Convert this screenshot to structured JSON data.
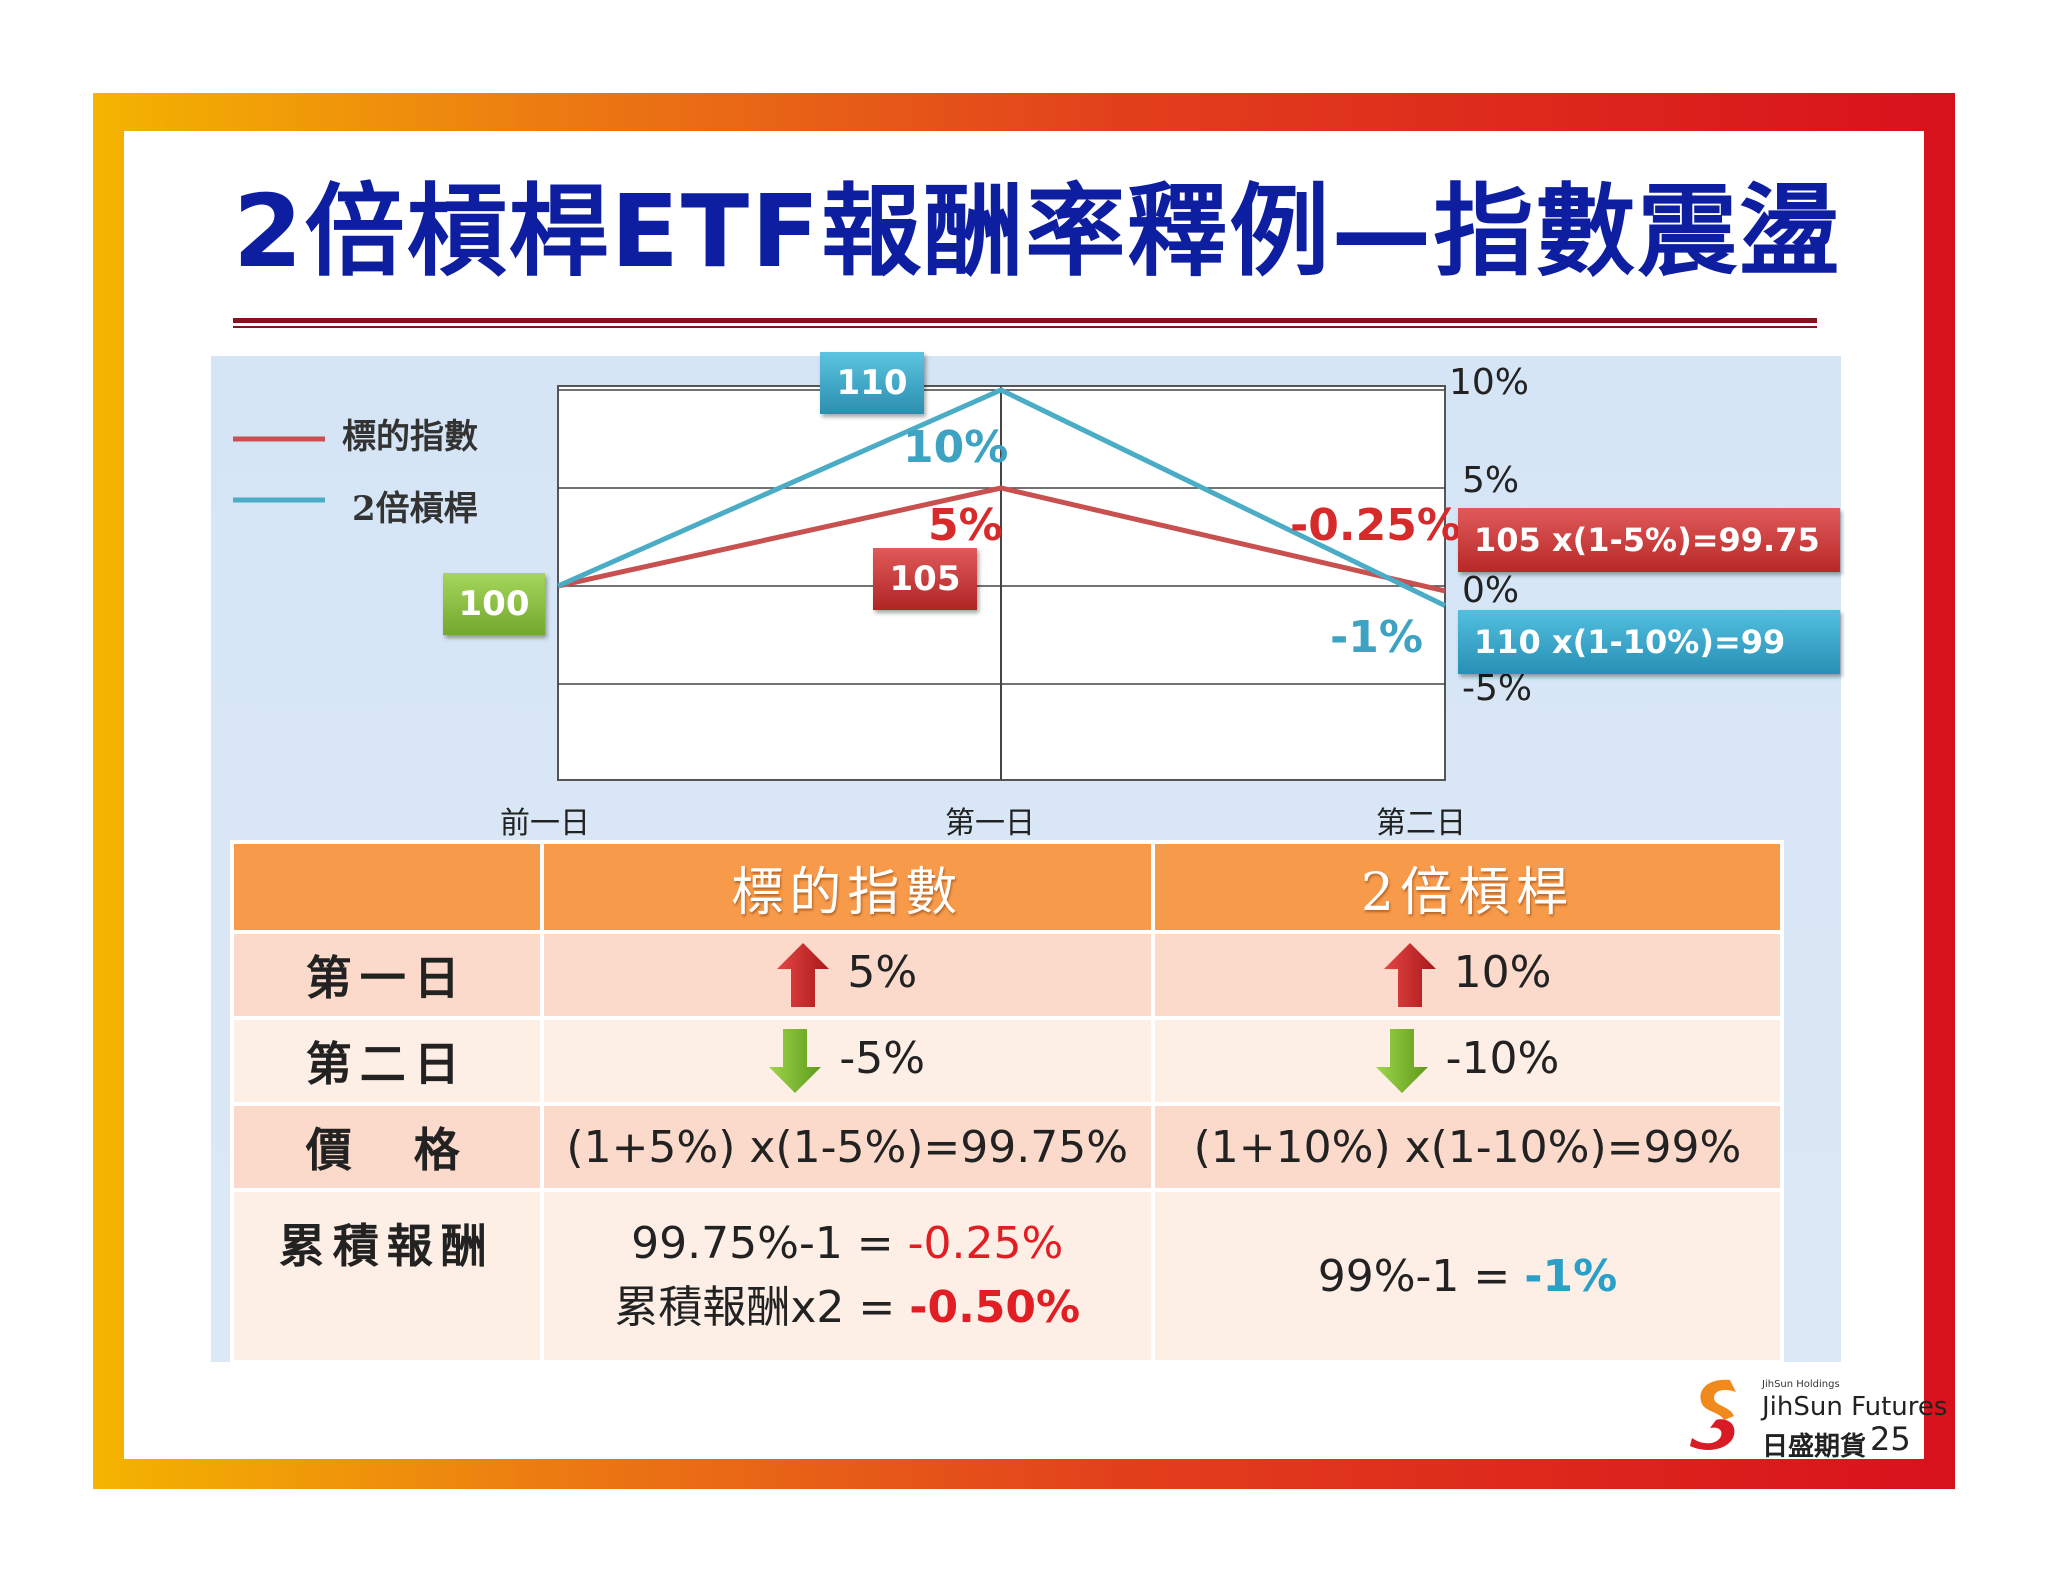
{
  "title": "2倍槓桿ETF報酬率釋例—指數震盪",
  "legend": {
    "index_label": "標的指數",
    "leveraged_label": "2倍槓桿"
  },
  "chart_data": {
    "type": "line",
    "categories": [
      "前一日",
      "第一日",
      "第二日"
    ],
    "series": [
      {
        "name": "標的指數",
        "values": [
          0,
          5,
          -0.25
        ],
        "color": "#c8504f"
      },
      {
        "name": "2倍槓桿",
        "values": [
          0,
          10,
          -1
        ],
        "color": "#4bacc6"
      }
    ],
    "y_ticks": [
      "10%",
      "5%",
      "0%",
      "-5%"
    ],
    "ylim": [
      -10,
      10
    ],
    "grid": true
  },
  "annotations": {
    "start_value": "100",
    "lev_day1_value": "110",
    "idx_day1_value": "105",
    "lev_day1_pct": "10%",
    "idx_day1_pct": "5%",
    "idx_day2_pct": "-0.25%",
    "lev_day2_pct": "-1%",
    "idx_day2_calc": "105 x(1-5%)=99.75",
    "lev_day2_calc": "110 x(1-10%)=99"
  },
  "colors": {
    "index_red": "#c8504f",
    "leveraged_blue": "#4bacc6",
    "title_blue": "#0d1fa0",
    "header_orange": "#f79a4a",
    "start_green": "#8cc63f"
  },
  "table": {
    "headers": [
      "",
      "標的指數",
      "2倍槓桿"
    ],
    "rows": [
      {
        "label": "第一日",
        "index": "5%",
        "index_dir": "up",
        "leveraged": "10%",
        "leveraged_dir": "up"
      },
      {
        "label": "第二日",
        "index": "-5%",
        "index_dir": "down",
        "leveraged": "-10%",
        "leveraged_dir": "down"
      },
      {
        "label": "價　格",
        "index": "(1+5%) x(1-5%)=99.75%",
        "leveraged": "(1+10%) x(1-10%)=99%"
      }
    ],
    "cumulative": {
      "label": "累積報酬",
      "index_line1_prefix": "99.75%-1 = ",
      "index_line1_value": "-0.25%",
      "index_line2_prefix": "累積報酬x2 = ",
      "index_line2_value": "-0.50%",
      "leveraged_prefix": "99%-1 = ",
      "leveraged_value": "-1%"
    }
  },
  "footer": {
    "holding": "JihSun Holdings",
    "company_en": "JihSun Futures",
    "company_zh": "日盛期貨",
    "page": "25"
  }
}
